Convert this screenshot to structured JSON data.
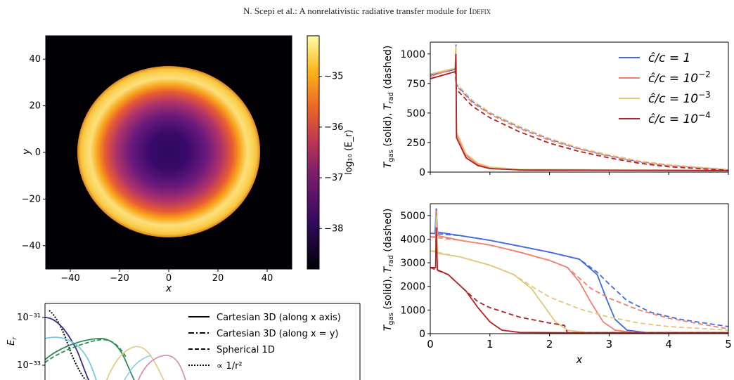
{
  "header": {
    "text": "N. Scepi et al.: A nonrelativistic radiative transfer module for ",
    "code": "Idefix"
  },
  "chart_data": [
    {
      "type": "heatmap",
      "xlabel": "x",
      "ylabel": "y",
      "xlim": [
        -50,
        50
      ],
      "ylim": [
        -50,
        50
      ],
      "xticks": [
        "−40",
        "−20",
        "0",
        "20",
        "40"
      ],
      "yticks": [
        "40",
        "20",
        "0",
        "−20",
        "−40"
      ],
      "colorbar": {
        "label": "log₁₀ (E_r)",
        "ticks": [
          "−35",
          "−36",
          "−37",
          "−38"
        ],
        "range": [
          -38.8,
          -34.2
        ],
        "colormap": "inferno"
      },
      "description_values": {
        "ring_inner_radius": 27,
        "ring_outer_radius": 37
      }
    },
    {
      "type": "line",
      "ylabel": "T_gas (solid), T_rad (dashed)",
      "xlim": [
        0,
        5
      ],
      "ylim": [
        0,
        1100
      ],
      "yticks": [
        "0",
        "250",
        "500",
        "750",
        "1000"
      ],
      "legend": {
        "placement": "top-right",
        "entries": [
          "ĉ/c = 1",
          "ĉ/c = 10⁻²",
          "ĉ/c = 10⁻³",
          "ĉ/c = 10⁻⁴"
        ]
      },
      "series": [
        {
          "name": "ĉ/c = 1",
          "color": "#4169e1"
        },
        {
          "name": "ĉ/c = 10⁻²",
          "color": "#f08070"
        },
        {
          "name": "ĉ/c = 10⁻³",
          "color": "#e3c77a"
        },
        {
          "name": "ĉ/c = 10⁻⁴",
          "color": "#b22222"
        }
      ]
    },
    {
      "type": "line",
      "xlabel": "x",
      "ylabel": "T_gas (solid), T_rad (dashed)",
      "xlim": [
        0,
        5
      ],
      "ylim": [
        0,
        5500
      ],
      "xticks": [
        "0",
        "1",
        "2",
        "3",
        "4",
        "5"
      ],
      "yticks": [
        "0",
        "1000",
        "2000",
        "3000",
        "4000",
        "5000"
      ],
      "series": [
        {
          "name": "ĉ/c = 1",
          "color": "#4169e1",
          "solid": [
            [
              0.08,
              4250
            ],
            [
              0.1,
              5300
            ],
            [
              0.12,
              4300
            ],
            [
              0.5,
              4150
            ],
            [
              1,
              3950
            ],
            [
              1.5,
              3700
            ],
            [
              2,
              3450
            ],
            [
              2.5,
              3150
            ],
            [
              2.8,
              2500
            ],
            [
              2.95,
              1500
            ],
            [
              3.1,
              600
            ],
            [
              3.3,
              150
            ],
            [
              3.6,
              50
            ],
            [
              5,
              40
            ]
          ],
          "dashed": [
            [
              0,
              4250
            ],
            [
              0.5,
              4150
            ],
            [
              1,
              3950
            ],
            [
              1.5,
              3700
            ],
            [
              2,
              3450
            ],
            [
              2.5,
              3150
            ],
            [
              2.8,
              2600
            ],
            [
              3,
              2100
            ],
            [
              3.3,
              1400
            ],
            [
              3.7,
              900
            ],
            [
              4.2,
              600
            ],
            [
              5,
              300
            ]
          ]
        },
        {
          "name": "ĉ/c = 10⁻²",
          "color": "#f08070",
          "solid": [
            [
              0,
              4100
            ],
            [
              0.09,
              4100
            ],
            [
              0.1,
              5200
            ],
            [
              0.12,
              4150
            ],
            [
              0.5,
              3950
            ],
            [
              1,
              3750
            ],
            [
              1.5,
              3450
            ],
            [
              2,
              3100
            ],
            [
              2.3,
              2800
            ],
            [
              2.5,
              2200
            ],
            [
              2.7,
              1300
            ],
            [
              2.9,
              500
            ],
            [
              3.1,
              150
            ],
            [
              3.4,
              50
            ],
            [
              5,
              40
            ]
          ],
          "dashed": [
            [
              0,
              4100
            ],
            [
              0.5,
              3950
            ],
            [
              1,
              3750
            ],
            [
              1.5,
              3450
            ],
            [
              2,
              3100
            ],
            [
              2.3,
              2800
            ],
            [
              2.5,
              2350
            ],
            [
              2.7,
              1900
            ],
            [
              3,
              1500
            ],
            [
              3.5,
              1000
            ],
            [
              4,
              650
            ],
            [
              5,
              200
            ]
          ]
        },
        {
          "name": "ĉ/c = 10⁻³",
          "color": "#e3c77a",
          "solid": [
            [
              0,
              3500
            ],
            [
              0.09,
              3500
            ],
            [
              0.1,
              5000
            ],
            [
              0.12,
              3400
            ],
            [
              0.5,
              3250
            ],
            [
              1,
              2900
            ],
            [
              1.4,
              2500
            ],
            [
              1.7,
              1900
            ],
            [
              1.9,
              1200
            ],
            [
              2.1,
              500
            ],
            [
              2.3,
              150
            ],
            [
              2.6,
              50
            ],
            [
              5,
              40
            ]
          ],
          "dashed": [
            [
              0,
              3500
            ],
            [
              0.5,
              3250
            ],
            [
              1,
              2900
            ],
            [
              1.4,
              2500
            ],
            [
              1.7,
              2000
            ],
            [
              2,
              1550
            ],
            [
              2.5,
              1050
            ],
            [
              3,
              700
            ],
            [
              3.5,
              450
            ],
            [
              4,
              300
            ],
            [
              5,
              150
            ]
          ]
        },
        {
          "name": "ĉ/c = 10⁻⁴",
          "color": "#b22222",
          "solid": [
            [
              0,
              2800
            ],
            [
              0.09,
              2800
            ],
            [
              0.1,
              4500
            ],
            [
              0.12,
              2700
            ],
            [
              0.3,
              2500
            ],
            [
              0.6,
              1800
            ],
            [
              0.8,
              1100
            ],
            [
              1,
              500
            ],
            [
              1.2,
              150
            ],
            [
              1.5,
              50
            ],
            [
              2.2,
              40
            ],
            [
              5,
              40
            ]
          ],
          "dashed": [
            [
              0,
              2800
            ],
            [
              0.3,
              2500
            ],
            [
              0.6,
              1800
            ],
            [
              0.8,
              1350
            ],
            [
              1,
              1100
            ],
            [
              1.5,
              700
            ],
            [
              2,
              450
            ],
            [
              2.25,
              350
            ],
            [
              2.3,
              40
            ],
            [
              5,
              40
            ]
          ]
        }
      ]
    },
    {
      "type": "line",
      "ylabel": "E_r",
      "yticks": [
        "10⁻³¹",
        "10⁻³³"
      ],
      "legend": {
        "placement": "top-right",
        "entries": [
          "Cartesian 3D (along x axis)",
          "Cartesian 3D (along x = y)",
          "Spherical 1D",
          "∝ 1/r²"
        ]
      }
    }
  ]
}
